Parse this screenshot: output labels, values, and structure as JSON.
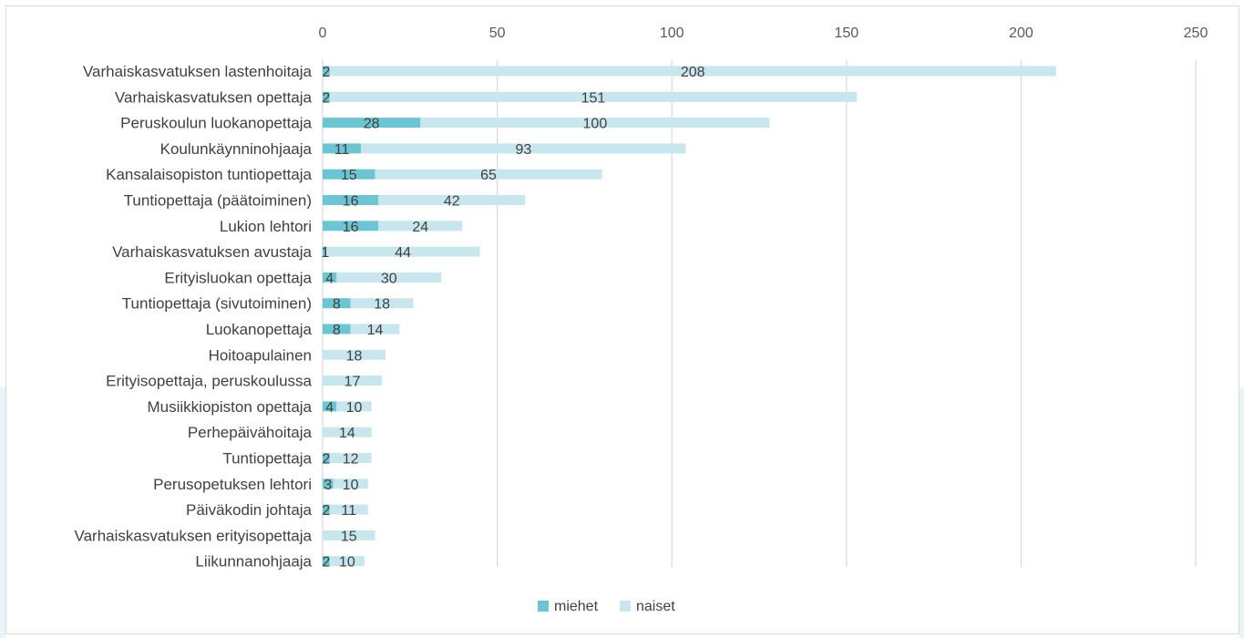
{
  "chart_data": {
    "type": "bar",
    "orientation": "horizontal",
    "stacked": true,
    "categories": [
      "Varhaiskasvatuksen lastenhoitaja",
      "Varhaiskasvatuksen opettaja",
      "Peruskoulun luokanopettaja",
      "Koulunkäynninohjaaja",
      "Kansalaisopiston tuntiopettaja",
      "Tuntiopettaja (päätoiminen)",
      "Lukion lehtori",
      "Varhaiskasvatuksen avustaja",
      "Erityisluokan opettaja",
      "Tuntiopettaja (sivutoiminen)",
      "Luokanopettaja",
      "Hoitoapulainen",
      "Erityisopettaja, peruskoulussa",
      "Musiikkiopiston opettaja",
      "Perhepäivähoitaja",
      "Tuntiopettaja",
      "Perusopetuksen lehtori",
      "Päiväkodin johtaja",
      "Varhaiskasvatuksen erityisopettaja",
      "Liikunnanohjaaja"
    ],
    "series": [
      {
        "name": "miehet",
        "color": "#6cc5d2",
        "values": [
          2,
          2,
          28,
          11,
          15,
          16,
          16,
          1,
          4,
          8,
          8,
          0,
          0,
          4,
          0,
          2,
          3,
          2,
          0,
          2
        ],
        "labels": [
          "2",
          "2",
          "28",
          "11",
          "15",
          "16",
          "16",
          "1",
          "4",
          "8",
          "8",
          "",
          "",
          "4",
          "",
          "2",
          "3",
          "2",
          "",
          "2"
        ]
      },
      {
        "name": "naiset",
        "color": "#c8e6ed",
        "values": [
          208,
          151,
          100,
          93,
          65,
          42,
          24,
          44,
          30,
          18,
          14,
          18,
          17,
          10,
          14,
          12,
          10,
          11,
          15,
          10
        ],
        "labels": [
          "208",
          "151",
          "100",
          "93",
          "65",
          "42",
          "24",
          "44",
          "30",
          "18",
          "14",
          "18",
          "17",
          "10",
          "14",
          "12",
          "10",
          "11",
          "15",
          "10"
        ]
      }
    ],
    "xlim": [
      0,
      250
    ],
    "xticks": [
      "0",
      "50",
      "100",
      "150",
      "200",
      "250"
    ],
    "xaxis_position": "top",
    "grid": "vertical",
    "legend_position": "bottom-center",
    "title": "",
    "xlabel": "",
    "ylabel": ""
  }
}
